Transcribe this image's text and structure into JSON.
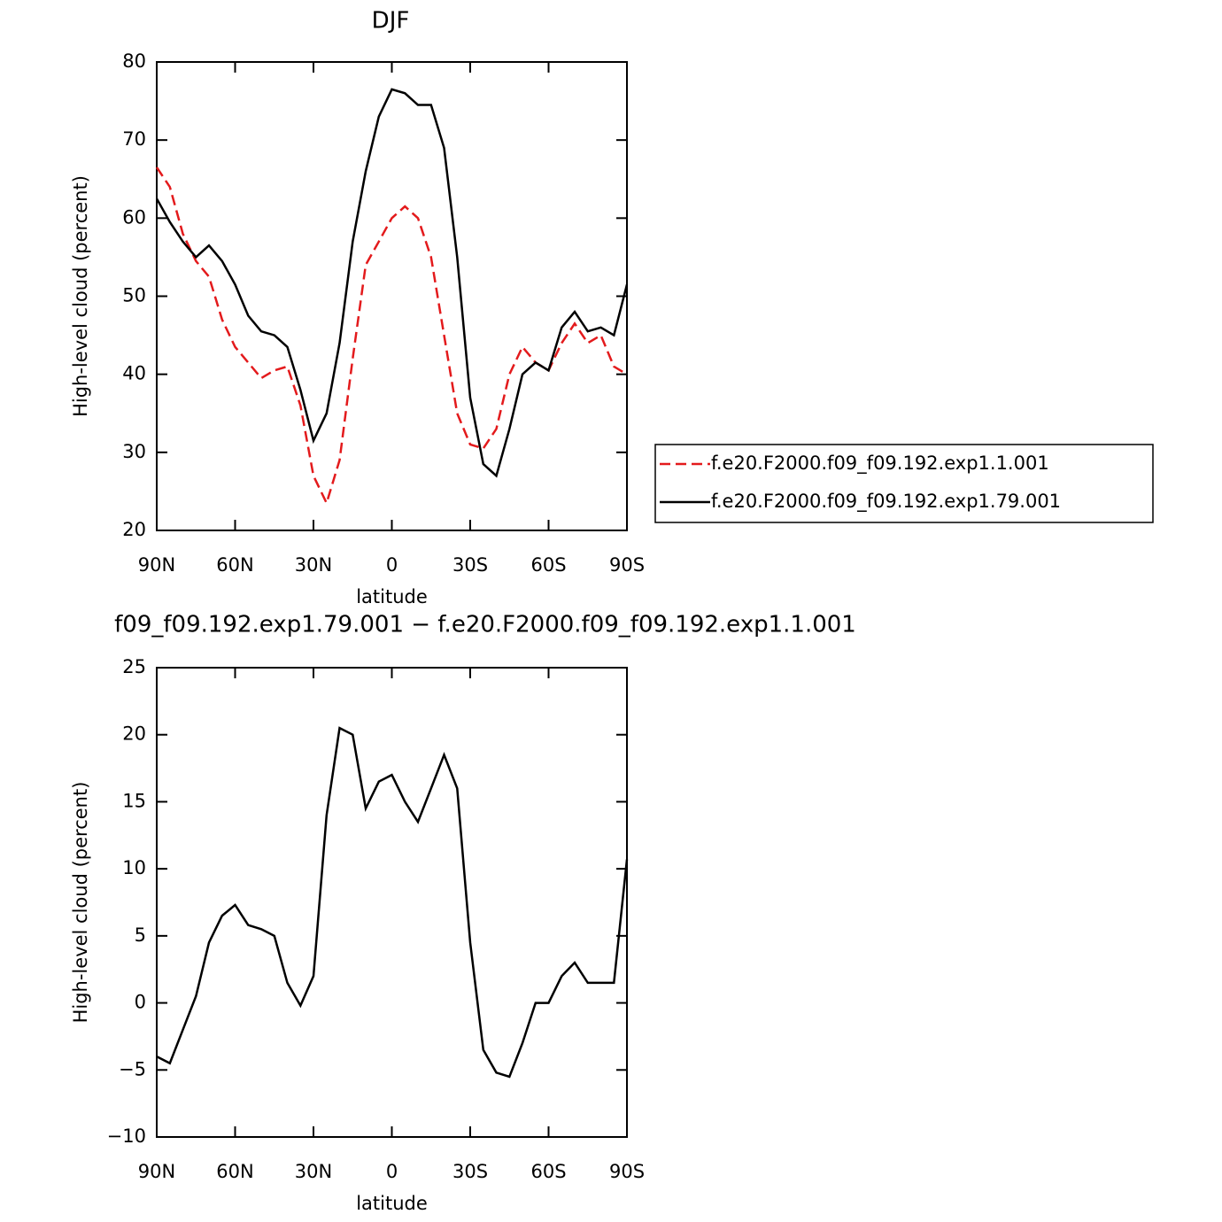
{
  "chart_data": [
    {
      "type": "line",
      "title": "DJF",
      "xlabel": "latitude",
      "ylabel": "High-level cloud (percent)",
      "x": [
        90,
        85,
        80,
        75,
        70,
        65,
        60,
        55,
        50,
        45,
        40,
        35,
        30,
        25,
        20,
        15,
        10,
        5,
        0,
        -5,
        -10,
        -15,
        -20,
        -25,
        -30,
        -35,
        -40,
        -45,
        -50,
        -55,
        -60,
        -65,
        -70,
        -75,
        -80,
        -85,
        -90
      ],
      "series": [
        {
          "name": "f.e20.F2000.f09_f09.192.exp1.1.001",
          "color": "#e31a1c",
          "dash": "dashed",
          "values": [
            66.5,
            64,
            58,
            54.5,
            52.5,
            47,
            43.5,
            41.5,
            39.5,
            40.5,
            41,
            36,
            27,
            23.5,
            29,
            42,
            54,
            57,
            60,
            61.5,
            60,
            55,
            45,
            35,
            31,
            30.5,
            33,
            40,
            43.5,
            41.5,
            40.5,
            44,
            46.5,
            44,
            45,
            41,
            40
          ]
        },
        {
          "name": "f.e20.F2000.f09_f09.192.exp1.79.001",
          "color": "#000000",
          "dash": "solid",
          "values": [
            62.5,
            59.5,
            57,
            55,
            56.5,
            54.5,
            51.5,
            47.5,
            45.5,
            45,
            43.5,
            38,
            31.5,
            35,
            44,
            57,
            66,
            73,
            76.5,
            76,
            74.5,
            74.5,
            69,
            55,
            37,
            28.5,
            27,
            33,
            40,
            41.5,
            40.5,
            46,
            48,
            45.5,
            46,
            45,
            51.5
          ]
        }
      ],
      "xlim": [
        90,
        -90
      ],
      "xticks": [
        {
          "value": 90,
          "label": "90N"
        },
        {
          "value": 60,
          "label": "60N"
        },
        {
          "value": 30,
          "label": "30N"
        },
        0,
        {
          "value": -30,
          "label": "30S"
        },
        {
          "value": -60,
          "label": "60S"
        },
        {
          "value": -90,
          "label": "90S"
        }
      ],
      "ylim": [
        20,
        80
      ],
      "yticks": [
        20,
        30,
        40,
        50,
        60,
        70,
        80
      ],
      "legend": "right"
    },
    {
      "type": "line",
      "title": "f09_f09.192.exp1.79.001 − f.e20.F2000.f09_f09.192.exp1.1.001",
      "xlabel": "latitude",
      "ylabel": "High-level cloud (percent)",
      "x": [
        90,
        85,
        80,
        75,
        70,
        65,
        60,
        55,
        50,
        45,
        40,
        35,
        30,
        25,
        20,
        15,
        10,
        5,
        0,
        -5,
        -10,
        -15,
        -20,
        -25,
        -30,
        -35,
        -40,
        -45,
        -50,
        -55,
        -60,
        -65,
        -70,
        -75,
        -80,
        -85,
        -90
      ],
      "series": [
        {
          "color": "#000000",
          "dash": "solid",
          "values": [
            -4,
            -4.5,
            -2,
            0.5,
            4.5,
            6.5,
            7.3,
            5.8,
            5.5,
            5,
            1.5,
            -0.2,
            2,
            14,
            20.5,
            20,
            14.5,
            16.5,
            17,
            15,
            13.5,
            16,
            18.5,
            16,
            4.5,
            -3.5,
            -5.2,
            -5.5,
            -3,
            0,
            0,
            2,
            3,
            1.5,
            1.5,
            1.5,
            10.7
          ]
        }
      ],
      "xlim": [
        90,
        -90
      ],
      "xticks": [
        {
          "value": 90,
          "label": "90N"
        },
        {
          "value": 60,
          "label": "60N"
        },
        {
          "value": 30,
          "label": "30N"
        },
        0,
        {
          "value": -30,
          "label": "30S"
        },
        {
          "value": -60,
          "label": "60S"
        },
        {
          "value": -90,
          "label": "90S"
        }
      ],
      "ylim": [
        -10,
        25
      ],
      "yticks": [
        {
          "value": -10,
          "label": "−10"
        },
        {
          "value": -5,
          "label": "−5"
        },
        0,
        5,
        10,
        15,
        20,
        25
      ]
    }
  ]
}
